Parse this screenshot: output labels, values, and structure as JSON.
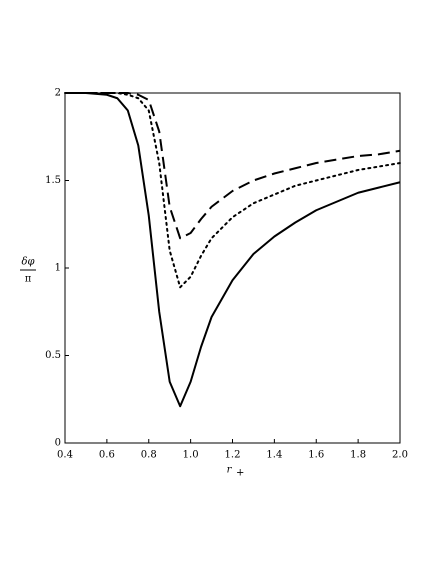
{
  "chart_data": {
    "type": "line",
    "xlabel": {
      "base": "r",
      "subscript": "+"
    },
    "ylabel": {
      "numerator": "δφ",
      "denominator": "π"
    },
    "x": [
      0.4,
      0.5,
      0.6,
      0.65,
      0.7,
      0.75,
      0.8,
      0.85,
      0.9,
      0.95,
      1.0,
      1.05,
      1.1,
      1.2,
      1.3,
      1.4,
      1.5,
      1.6,
      1.7,
      1.8,
      1.9,
      2.0
    ],
    "series": [
      {
        "color": "#000000",
        "dash": "solid",
        "values": [
          2,
          2,
          1.99,
          1.97,
          1.9,
          1.7,
          1.3,
          0.75,
          0.35,
          0.21,
          0.35,
          0.55,
          0.72,
          0.93,
          1.08,
          1.18,
          1.26,
          1.33,
          1.38,
          1.43,
          1.46,
          1.49
        ]
      },
      {
        "color": "#000000",
        "dash": "dotted",
        "values": [
          2,
          2,
          2,
          2,
          1.99,
          1.97,
          1.9,
          1.6,
          1.1,
          0.89,
          0.95,
          1.07,
          1.17,
          1.29,
          1.37,
          1.42,
          1.47,
          1.5,
          1.53,
          1.56,
          1.58,
          1.6
        ]
      },
      {
        "color": "#000000",
        "dash": "dashed",
        "values": [
          2,
          2,
          2,
          2,
          2,
          1.99,
          1.96,
          1.78,
          1.35,
          1.17,
          1.2,
          1.28,
          1.35,
          1.44,
          1.5,
          1.54,
          1.57,
          1.6,
          1.62,
          1.64,
          1.65,
          1.67
        ]
      }
    ],
    "xlim": [
      0.4,
      2.0
    ],
    "xticks": [
      0.4,
      0.6,
      0.8,
      {
        "value": 1,
        "label": "1.0"
      },
      1.2,
      1.4,
      1.6,
      1.8,
      {
        "value": 2,
        "label": "2.0"
      }
    ],
    "ylim": [
      0,
      2
    ],
    "yticks": [
      0,
      0.5,
      1,
      1.5,
      2
    ],
    "grid": false
  }
}
